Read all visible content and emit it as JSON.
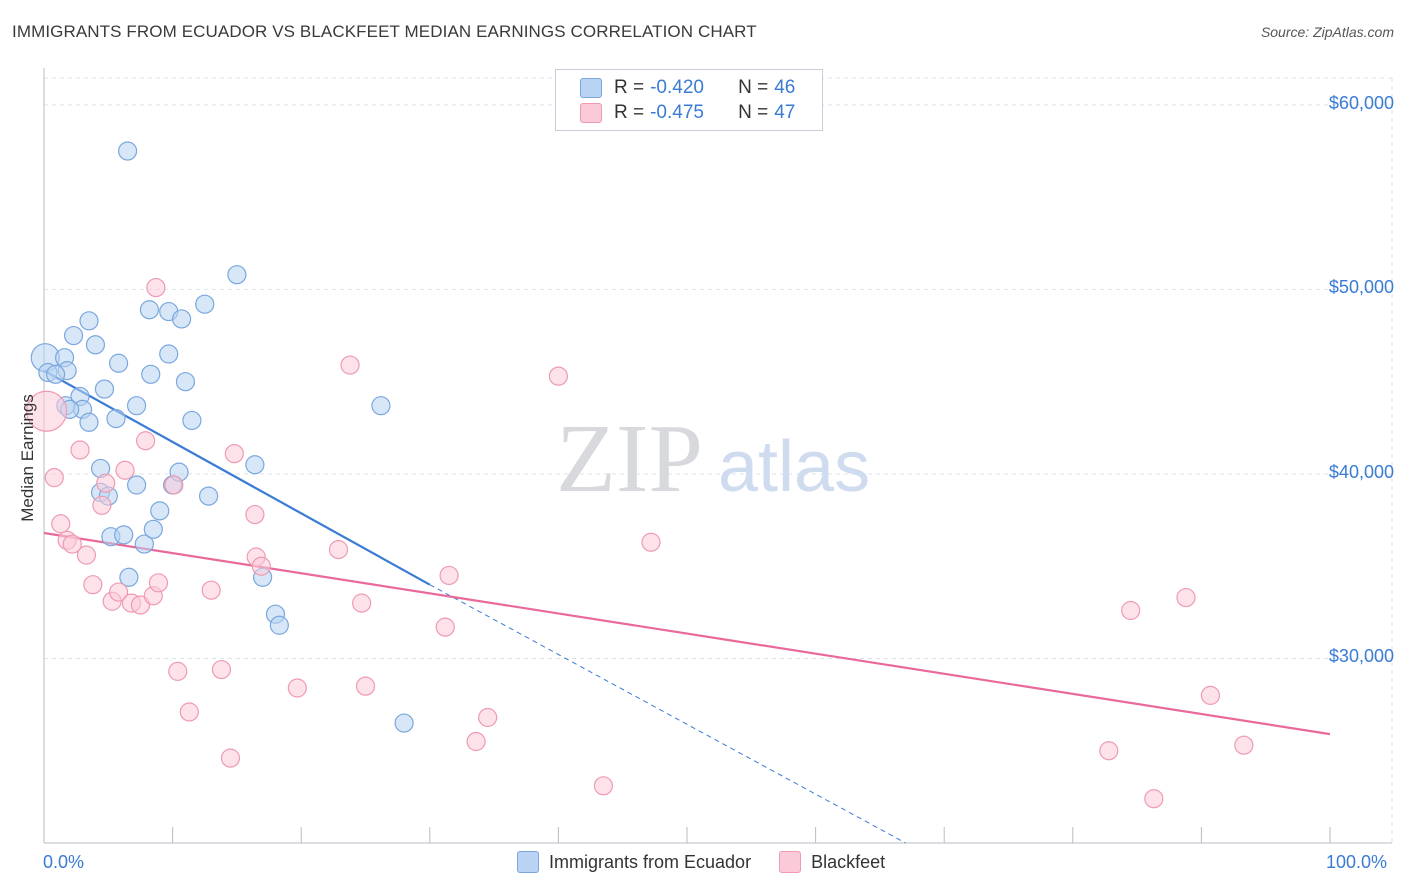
{
  "title": "IMMIGRANTS FROM ECUADOR VS BLACKFEET MEDIAN EARNINGS CORRELATION CHART",
  "source": "Source: ZipAtlas.com",
  "watermark": {
    "zip": "ZIP",
    "atlas": "atlas"
  },
  "legend": {
    "series1": {
      "r_label": "R = ",
      "r_value": "-0.420",
      "n_label": "N = ",
      "n_value": "46"
    },
    "series2": {
      "r_label": "R = ",
      "r_value": "-0.475",
      "n_label": "N = ",
      "n_value": "47"
    }
  },
  "bottom_legend": {
    "series1": "Immigrants from Ecuador",
    "series2": "Blackfeet"
  },
  "colors": {
    "blue": "#3a7bd5",
    "blue_fill": "#b8d3f3",
    "pink": "#e8699a",
    "pink_fill": "#fbcad8",
    "grid": "#dde2ea"
  },
  "chart_data": {
    "type": "scatter",
    "title": "IMMIGRANTS FROM ECUADOR VS BLACKFEET MEDIAN EARNINGS CORRELATION CHART",
    "xlabel": "",
    "ylabel": "Median Earnings",
    "xlim": [
      0,
      100
    ],
    "ylim": [
      20000,
      62000
    ],
    "x_tick_labels": [
      "0.0%",
      "100.0%"
    ],
    "y_ticks": [
      30000,
      40000,
      50000,
      60000
    ],
    "y_tick_labels": [
      "$30,000",
      "$40,000",
      "$50,000",
      "$60,000"
    ],
    "series": [
      {
        "name": "Immigrants from Ecuador",
        "color": "#3a7bd5",
        "points": [
          [
            0.1,
            46.3
          ],
          [
            0.3,
            45.5
          ],
          [
            1.6,
            46.3
          ],
          [
            1.8,
            45.6
          ],
          [
            1.7,
            43.7
          ],
          [
            2.3,
            47.5
          ],
          [
            2.8,
            44.2
          ],
          [
            3.5,
            48.3
          ],
          [
            3.0,
            43.5
          ],
          [
            3.5,
            42.8
          ],
          [
            4.0,
            47.0
          ],
          [
            4.4,
            39.0
          ],
          [
            4.4,
            40.3
          ],
          [
            4.7,
            44.6
          ],
          [
            5.0,
            38.8
          ],
          [
            5.2,
            36.6
          ],
          [
            5.6,
            43.0
          ],
          [
            5.8,
            46.0
          ],
          [
            6.2,
            36.7
          ],
          [
            6.6,
            34.4
          ],
          [
            7.2,
            39.4
          ],
          [
            7.2,
            43.7
          ],
          [
            6.5,
            57.5
          ],
          [
            7.8,
            36.2
          ],
          [
            8.2,
            48.9
          ],
          [
            8.3,
            45.4
          ],
          [
            8.5,
            37.0
          ],
          [
            9.0,
            38.0
          ],
          [
            9.7,
            48.8
          ],
          [
            9.7,
            46.5
          ],
          [
            10.0,
            39.4
          ],
          [
            10.7,
            48.4
          ],
          [
            10.5,
            40.1
          ],
          [
            11.0,
            45.0
          ],
          [
            11.5,
            42.9
          ],
          [
            12.5,
            49.2
          ],
          [
            12.8,
            38.8
          ],
          [
            15.0,
            50.8
          ],
          [
            16.4,
            40.5
          ],
          [
            17.0,
            34.4
          ],
          [
            18.0,
            32.4
          ],
          [
            18.3,
            31.8
          ],
          [
            26.2,
            43.7
          ],
          [
            28.0,
            26.5
          ],
          [
            0.9,
            45.4
          ],
          [
            2.0,
            43.5
          ]
        ]
      },
      {
        "name": "Blackfeet",
        "color": "#e8699a",
        "points": [
          [
            0.2,
            43.4
          ],
          [
            0.8,
            39.8
          ],
          [
            1.3,
            37.3
          ],
          [
            1.8,
            36.4
          ],
          [
            2.2,
            36.2
          ],
          [
            2.8,
            41.3
          ],
          [
            3.3,
            35.6
          ],
          [
            3.8,
            34.0
          ],
          [
            4.5,
            38.3
          ],
          [
            4.8,
            39.5
          ],
          [
            5.3,
            33.1
          ],
          [
            5.8,
            33.6
          ],
          [
            6.3,
            40.2
          ],
          [
            6.8,
            33.0
          ],
          [
            7.5,
            32.9
          ],
          [
            7.9,
            41.8
          ],
          [
            8.5,
            33.4
          ],
          [
            8.9,
            34.1
          ],
          [
            8.7,
            50.1
          ],
          [
            10.1,
            39.4
          ],
          [
            10.4,
            29.3
          ],
          [
            11.3,
            27.1
          ],
          [
            13.0,
            33.7
          ],
          [
            13.8,
            29.4
          ],
          [
            14.5,
            24.6
          ],
          [
            14.8,
            41.1
          ],
          [
            16.5,
            35.5
          ],
          [
            16.4,
            37.8
          ],
          [
            16.9,
            35.0
          ],
          [
            19.7,
            28.4
          ],
          [
            22.9,
            35.9
          ],
          [
            23.8,
            45.9
          ],
          [
            24.7,
            33.0
          ],
          [
            25.0,
            28.5
          ],
          [
            31.2,
            31.7
          ],
          [
            31.5,
            34.5
          ],
          [
            33.6,
            25.5
          ],
          [
            34.5,
            26.8
          ],
          [
            40.0,
            45.3
          ],
          [
            43.5,
            23.1
          ],
          [
            47.2,
            36.3
          ],
          [
            82.8,
            25.0
          ],
          [
            84.5,
            32.6
          ],
          [
            86.3,
            22.4
          ],
          [
            88.8,
            33.3
          ],
          [
            90.7,
            28.0
          ],
          [
            93.3,
            25.3
          ]
        ]
      }
    ],
    "trend_lines": [
      {
        "series": "Immigrants from Ecuador",
        "x_start": 0,
        "y_start": 45.6,
        "x_end": 30,
        "y_end": 34.0,
        "dashed_x_end": 67,
        "dashed_y_end": 20.0
      },
      {
        "series": "Blackfeet",
        "x_start": 0,
        "y_start": 36.8,
        "x_end": 100,
        "y_end": 25.9
      }
    ],
    "y_units_note": "point y values are in thousands of dollars"
  }
}
